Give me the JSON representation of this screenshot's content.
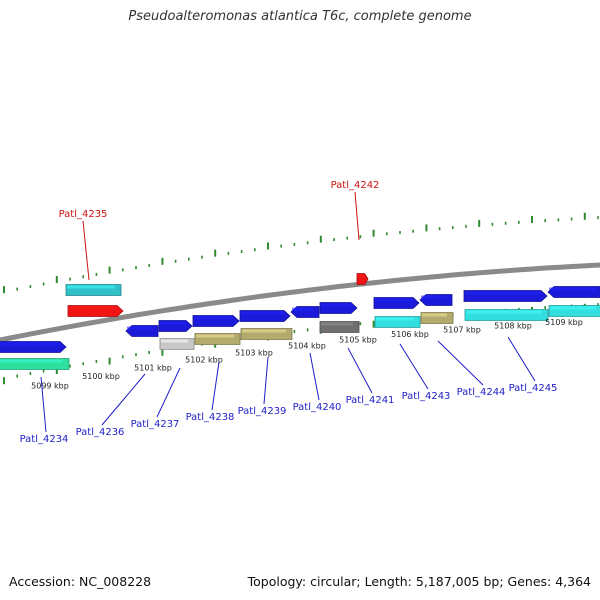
{
  "title": "Pseudoalteromonas atlantica T6c, complete genome",
  "footer": {
    "accession": "Accession: NC_008228",
    "topology": "Topology: circular; Length: 5,187,005 bp; Genes: 4,364"
  },
  "colors": {
    "backbone": "#8a8a8a",
    "tick": "#2e8b2e",
    "gene_blue": "#1a1ad8",
    "gene_cyan": "#33dede",
    "gene_teal": "#2fc0c8",
    "gene_khaki": "#b3ab6e",
    "gene_gray": "#6e6e6e",
    "gene_lightgray": "#c8c8c8",
    "gene_red": "#f01414",
    "gene_green": "#2ee0a0",
    "label_blue": "#1e1ec8",
    "label_red": "#cc1111"
  },
  "scale_labels": [
    "5099 kbp",
    "5100 kbp",
    "5101 kbp",
    "5102 kbp",
    "5103 kbp",
    "5104 kbp",
    "5105 kbp",
    "5106 kbp",
    "5107 kbp",
    "5108 kbp",
    "5109 kbp"
  ],
  "gene_labels": [
    {
      "name": "Patl_4234",
      "color": "blue"
    },
    {
      "name": "Patl_4235",
      "color": "red"
    },
    {
      "name": "Patl_4236",
      "color": "blue"
    },
    {
      "name": "Patl_4237",
      "color": "blue"
    },
    {
      "name": "Patl_4238",
      "color": "blue"
    },
    {
      "name": "Patl_4239",
      "color": "blue"
    },
    {
      "name": "Patl_4240",
      "color": "blue"
    },
    {
      "name": "Patl_4241",
      "color": "blue"
    },
    {
      "name": "Patl_4242",
      "color": "red"
    },
    {
      "name": "Patl_4243",
      "color": "blue"
    },
    {
      "name": "Patl_4244",
      "color": "blue"
    },
    {
      "name": "Patl_4245",
      "color": "blue"
    }
  ]
}
